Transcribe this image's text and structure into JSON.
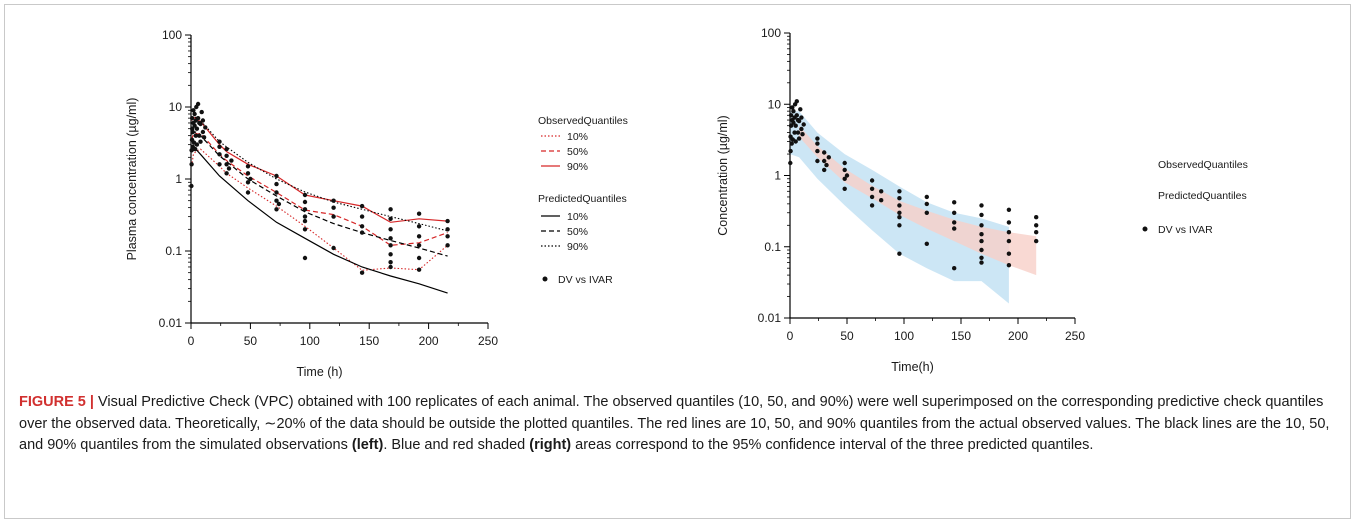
{
  "chart_data": [
    {
      "type": "line",
      "yscale": "log",
      "xlabel": "Time (h)",
      "ylabel": "Plasma concentration (µg/ml)",
      "xlim": [
        0,
        250
      ],
      "ylim": [
        0.01,
        100
      ],
      "xticks": [
        "0",
        "50",
        "100",
        "150",
        "200",
        "250"
      ],
      "yticks": [
        "0.01",
        "0.1",
        "1",
        "10",
        "100"
      ],
      "legend": {
        "observed_title": "ObservedQuantiles",
        "observed_items": [
          "10%",
          "50%",
          "90%"
        ],
        "predicted_title": "PredictedQuantiles",
        "predicted_items": [
          "10%",
          "50%",
          "90%"
        ],
        "scatter_label": "DV vs IVAR"
      },
      "series": [
        {
          "key": "obs10",
          "color": "#d62728",
          "dash": "dot",
          "x": [
            0.5,
            2,
            4,
            6,
            8,
            24,
            30,
            48,
            72,
            96,
            120,
            144,
            168,
            192,
            216
          ],
          "y": [
            1.5,
            2.2,
            2.4,
            2.5,
            2.6,
            1.5,
            1.2,
            0.75,
            0.42,
            0.22,
            0.11,
            0.054,
            0.058,
            0.055,
            0.12
          ]
        },
        {
          "key": "obs50",
          "color": "#d62728",
          "dash": "dash",
          "x": [
            0.5,
            2,
            4,
            6,
            8,
            24,
            30,
            48,
            72,
            96,
            120,
            144,
            168,
            192,
            216
          ],
          "y": [
            3.5,
            4.2,
            4.3,
            4.2,
            4.3,
            2.2,
            1.8,
            1.1,
            0.65,
            0.37,
            0.32,
            0.22,
            0.12,
            0.13,
            0.18
          ]
        },
        {
          "key": "obs90",
          "color": "#d62728",
          "dash": "solid",
          "x": [
            0.5,
            2,
            4,
            6,
            8,
            24,
            30,
            48,
            72,
            96,
            120,
            144,
            168,
            192,
            216
          ],
          "y": [
            6.5,
            7.2,
            7.0,
            6.5,
            6.3,
            3.0,
            2.4,
            1.6,
            1.1,
            0.6,
            0.5,
            0.42,
            0.25,
            0.28,
            0.26
          ]
        },
        {
          "key": "pred10",
          "color": "#000000",
          "dash": "solid",
          "x": [
            0.5,
            4,
            8,
            24,
            48,
            72,
            96,
            120,
            144,
            168,
            192,
            216
          ],
          "y": [
            2.4,
            2.6,
            2.2,
            1.1,
            0.5,
            0.25,
            0.15,
            0.09,
            0.06,
            0.045,
            0.035,
            0.026
          ]
        },
        {
          "key": "pred50",
          "color": "#000000",
          "dash": "dash",
          "x": [
            0.5,
            4,
            8,
            24,
            48,
            72,
            96,
            120,
            144,
            168,
            192,
            216
          ],
          "y": [
            4.2,
            4.5,
            4.0,
            2.1,
            1.0,
            0.58,
            0.35,
            0.24,
            0.18,
            0.14,
            0.11,
            0.085
          ]
        },
        {
          "key": "pred90",
          "color": "#000000",
          "dash": "dot",
          "x": [
            0.5,
            4,
            8,
            24,
            48,
            72,
            96,
            120,
            144,
            168,
            192,
            216
          ],
          "y": [
            7.2,
            7.2,
            6.5,
            3.3,
            1.7,
            1.0,
            0.66,
            0.48,
            0.38,
            0.3,
            0.24,
            0.19
          ]
        }
      ],
      "points": [
        [
          0.3,
          0.8
        ],
        [
          0.5,
          1.6
        ],
        [
          0.5,
          2.5
        ],
        [
          0.8,
          3.5
        ],
        [
          1,
          5
        ],
        [
          1,
          7
        ],
        [
          1.5,
          2.8
        ],
        [
          1.5,
          4.5
        ],
        [
          2,
          6
        ],
        [
          2,
          9
        ],
        [
          2.5,
          3.2
        ],
        [
          3,
          5.5
        ],
        [
          3,
          8
        ],
        [
          3.5,
          2.6
        ],
        [
          4,
          4
        ],
        [
          4,
          6.5
        ],
        [
          4.5,
          10
        ],
        [
          5,
          3
        ],
        [
          5,
          5
        ],
        [
          6,
          7
        ],
        [
          6,
          11
        ],
        [
          7,
          4
        ],
        [
          7,
          6
        ],
        [
          8,
          3.3
        ],
        [
          8,
          5.8
        ],
        [
          9,
          8.5
        ],
        [
          10,
          4.5
        ],
        [
          10,
          6.5
        ],
        [
          11,
          3.8
        ],
        [
          12,
          5.2
        ],
        [
          24,
          1.6
        ],
        [
          24,
          2.2
        ],
        [
          24,
          2.8
        ],
        [
          24,
          3.3
        ],
        [
          30,
          1.2
        ],
        [
          30,
          1.6
        ],
        [
          30,
          2.1
        ],
        [
          30,
          2.6
        ],
        [
          32,
          1.4
        ],
        [
          34,
          1.8
        ],
        [
          48,
          0.65
        ],
        [
          48,
          0.9
        ],
        [
          48,
          1.2
        ],
        [
          48,
          1.5
        ],
        [
          50,
          1.0
        ],
        [
          72,
          0.38
        ],
        [
          72,
          0.5
        ],
        [
          72,
          0.65
        ],
        [
          72,
          0.85
        ],
        [
          72,
          1.1
        ],
        [
          74,
          0.45
        ],
        [
          96,
          0.08
        ],
        [
          96,
          0.2
        ],
        [
          96,
          0.26
        ],
        [
          96,
          0.3
        ],
        [
          96,
          0.38
        ],
        [
          96,
          0.48
        ],
        [
          96,
          0.6
        ],
        [
          120,
          0.11
        ],
        [
          120,
          0.3
        ],
        [
          120,
          0.4
        ],
        [
          120,
          0.5
        ],
        [
          144,
          0.05
        ],
        [
          144,
          0.18
        ],
        [
          144,
          0.22
        ],
        [
          144,
          0.3
        ],
        [
          144,
          0.42
        ],
        [
          168,
          0.06
        ],
        [
          168,
          0.07
        ],
        [
          168,
          0.09
        ],
        [
          168,
          0.12
        ],
        [
          168,
          0.15
        ],
        [
          168,
          0.2
        ],
        [
          168,
          0.28
        ],
        [
          168,
          0.38
        ],
        [
          192,
          0.055
        ],
        [
          192,
          0.08
        ],
        [
          192,
          0.12
        ],
        [
          192,
          0.16
        ],
        [
          192,
          0.22
        ],
        [
          192,
          0.33
        ],
        [
          216,
          0.12
        ],
        [
          216,
          0.16
        ],
        [
          216,
          0.2
        ],
        [
          216,
          0.26
        ]
      ]
    },
    {
      "type": "scatter",
      "yscale": "log",
      "xlabel": "Time(h)",
      "ylabel": "Concentration (µg/ml)",
      "xlim": [
        0,
        250
      ],
      "ylim": [
        0.01,
        100
      ],
      "xticks": [
        "0",
        "50",
        "100",
        "150",
        "200",
        "250"
      ],
      "yticks": [
        "0.01",
        "0.1",
        "1",
        "10",
        "100"
      ],
      "legend": {
        "observed_title": "ObservedQuantiles",
        "predicted_title": "PredictedQuantiles",
        "scatter_label": "DV vs IVAR"
      },
      "bands": [
        {
          "color": "#bfe0f2",
          "x": [
            0,
            8,
            24,
            48,
            72,
            96,
            120,
            144,
            168,
            192
          ],
          "ylow": [
            2.0,
            1.8,
            0.9,
            0.38,
            0.17,
            0.08,
            0.05,
            0.033,
            0.033,
            0.016
          ],
          "yhigh": [
            8.0,
            8.0,
            4.0,
            2.0,
            1.2,
            0.7,
            0.42,
            0.3,
            0.25,
            0.19
          ]
        },
        {
          "color": "#f7cfc8",
          "x": [
            8,
            24,
            48,
            72,
            96,
            120,
            144,
            168,
            192,
            216
          ],
          "ylow": [
            3.5,
            1.8,
            0.8,
            0.48,
            0.28,
            0.18,
            0.12,
            0.08,
            0.055,
            0.04
          ],
          "yhigh": [
            5.0,
            2.6,
            1.25,
            0.72,
            0.44,
            0.32,
            0.24,
            0.19,
            0.16,
            0.14
          ]
        }
      ],
      "points": [
        [
          0.3,
          1.5
        ],
        [
          0.5,
          2.2
        ],
        [
          0.5,
          3.5
        ],
        [
          1,
          5
        ],
        [
          1,
          7
        ],
        [
          1.5,
          2.8
        ],
        [
          2,
          6
        ],
        [
          2,
          9
        ],
        [
          2.5,
          3.2
        ],
        [
          3,
          5.5
        ],
        [
          3,
          8
        ],
        [
          4,
          4
        ],
        [
          4,
          6.5
        ],
        [
          4.5,
          10
        ],
        [
          5,
          3
        ],
        [
          5,
          5
        ],
        [
          6,
          7
        ],
        [
          6,
          11
        ],
        [
          7,
          4
        ],
        [
          7,
          6
        ],
        [
          8,
          3.3
        ],
        [
          8,
          5.8
        ],
        [
          9,
          8.5
        ],
        [
          10,
          4.5
        ],
        [
          10,
          6.5
        ],
        [
          11,
          3.8
        ],
        [
          12,
          5.2
        ],
        [
          24,
          1.6
        ],
        [
          24,
          2.2
        ],
        [
          24,
          2.8
        ],
        [
          24,
          3.3
        ],
        [
          30,
          1.2
        ],
        [
          30,
          1.6
        ],
        [
          30,
          2.1
        ],
        [
          32,
          1.4
        ],
        [
          34,
          1.8
        ],
        [
          48,
          0.65
        ],
        [
          48,
          0.9
        ],
        [
          48,
          1.2
        ],
        [
          48,
          1.5
        ],
        [
          50,
          1.0
        ],
        [
          72,
          0.38
        ],
        [
          72,
          0.5
        ],
        [
          72,
          0.65
        ],
        [
          72,
          0.85
        ],
        [
          80,
          0.45
        ],
        [
          80,
          0.6
        ],
        [
          96,
          0.08
        ],
        [
          96,
          0.2
        ],
        [
          96,
          0.26
        ],
        [
          96,
          0.3
        ],
        [
          96,
          0.38
        ],
        [
          96,
          0.48
        ],
        [
          96,
          0.6
        ],
        [
          120,
          0.11
        ],
        [
          120,
          0.3
        ],
        [
          120,
          0.4
        ],
        [
          120,
          0.5
        ],
        [
          144,
          0.05
        ],
        [
          144,
          0.18
        ],
        [
          144,
          0.22
        ],
        [
          144,
          0.3
        ],
        [
          144,
          0.42
        ],
        [
          168,
          0.06
        ],
        [
          168,
          0.07
        ],
        [
          168,
          0.09
        ],
        [
          168,
          0.12
        ],
        [
          168,
          0.15
        ],
        [
          168,
          0.2
        ],
        [
          168,
          0.28
        ],
        [
          168,
          0.38
        ],
        [
          192,
          0.055
        ],
        [
          192,
          0.08
        ],
        [
          192,
          0.12
        ],
        [
          192,
          0.16
        ],
        [
          192,
          0.22
        ],
        [
          192,
          0.33
        ],
        [
          216,
          0.12
        ],
        [
          216,
          0.16
        ],
        [
          216,
          0.2
        ],
        [
          216,
          0.26
        ]
      ]
    }
  ],
  "caption": {
    "label": "FIGURE 5 |",
    "part1": " Visual Predictive Check (VPC) obtained with 100 replicates of each animal. The observed quantiles (10, 50, and 90%) were well superimposed on the corresponding predictive check quantiles over the observed data. Theoretically, ∼20% of the data should be outside the plotted quantiles. The red lines are 10, 50, and 90% quantiles from the actual observed values. The black lines are the 10, 50, and 90% quantiles from the simulated observations ",
    "left": "(left)",
    "part2": ". Blue and red shaded ",
    "right": "(right)",
    "part3": " areas correspond to the 95% confidence interval of the three predicted quantiles."
  }
}
